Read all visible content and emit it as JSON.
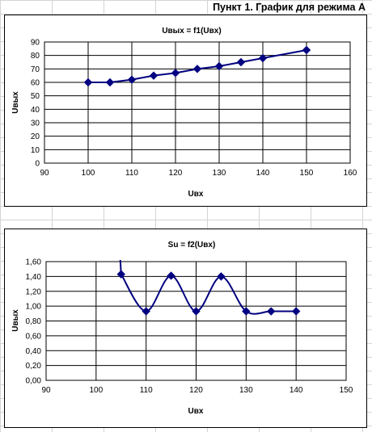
{
  "page": {
    "title": "Пункт 1. График для режима А"
  },
  "chart_data": [
    {
      "type": "line",
      "title": "Uвых = f1(Uвх)",
      "xlabel": "Uвх",
      "ylabel": "Uвых",
      "xlim": [
        90,
        160
      ],
      "ylim": [
        0,
        90
      ],
      "xticks": [
        90,
        100,
        110,
        120,
        130,
        140,
        150,
        160
      ],
      "yticks": [
        0,
        10,
        20,
        30,
        40,
        50,
        60,
        70,
        80,
        90
      ],
      "ytick_decimals": 0,
      "grid": true,
      "series": [
        {
          "x": [
            100,
            105,
            110,
            115,
            120,
            125,
            130,
            135,
            140,
            150
          ],
          "y": [
            60,
            60,
            62,
            65,
            67,
            70,
            72,
            75,
            78,
            84
          ],
          "color": "#000080",
          "marker": "diamond"
        }
      ]
    },
    {
      "type": "line",
      "title": "Su = f2(Uвх)",
      "xlabel": "Uвх",
      "ylabel": "Uвых",
      "xlim": [
        90,
        150
      ],
      "ylim": [
        0,
        1.6
      ],
      "xticks": [
        90,
        100,
        110,
        120,
        130,
        140,
        150
      ],
      "yticks": [
        0,
        0.2,
        0.4,
        0.6,
        0.8,
        1.0,
        1.2,
        1.4,
        1.6
      ],
      "ytick_decimals": 2,
      "grid": true,
      "series": [
        {
          "x": [
            105,
            110,
            115,
            120,
            125,
            130,
            135,
            140
          ],
          "y": [
            1.43,
            0.93,
            1.41,
            0.93,
            1.4,
            0.93,
            0.93,
            0.93
          ],
          "color": "#000080",
          "marker": "diamond",
          "smooth": true
        }
      ]
    }
  ]
}
